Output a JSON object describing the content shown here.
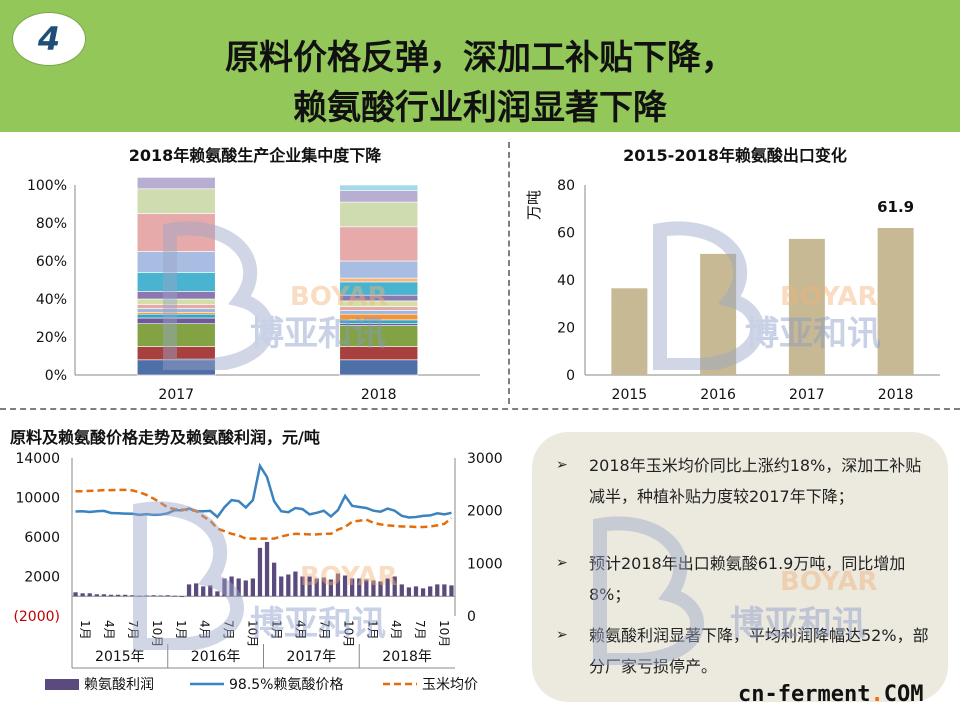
{
  "header": {
    "badge": "4",
    "title_line1": "原料价格反弹，深加工补贴下降，",
    "title_line2": "赖氨酸行业利润显著下降"
  },
  "colors": {
    "header_bg": "#93c75a",
    "export_bar": "#c6b994",
    "profit_bar": "#5b4a7d",
    "price_line": "#3a83c1",
    "corn_line": "#e46c0a",
    "accent": "#ff6a00"
  },
  "watermark": {
    "brand_en": "BOYAR",
    "brand_cn": "博亚和讯"
  },
  "site_logo": {
    "main": "cn-ferment",
    "dot": ".",
    "tld": "COM"
  },
  "notes": [
    {
      "icon": "arrow-bullet-icon",
      "text": "2018年玉米均价同比上涨约18%，深加工补贴减半，种植补贴力度较2017年下降；"
    },
    {
      "icon": "arrow-bullet-icon",
      "text": "预计2018年出口赖氨酸61.9万吨，同比增加8%；"
    },
    {
      "icon": "arrow-bullet-icon",
      "text": "赖氨酸利润显著下降，平均利润降幅达52%，部分厂家亏损停产。"
    }
  ],
  "chart_data": [
    {
      "id": "concentration",
      "type": "bar",
      "stacked": true,
      "title": "2018年赖氨酸生产企业集中度下降",
      "categories": [
        "2017",
        "2018"
      ],
      "yticks": [
        "0%",
        "20%",
        "40%",
        "60%",
        "80%",
        "100%"
      ],
      "ylim": [
        0,
        100
      ],
      "series": [
        {
          "color": "#4f6fa8",
          "values": [
            8,
            8
          ]
        },
        {
          "color": "#a84040",
          "values": [
            7,
            7
          ]
        },
        {
          "color": "#82a244",
          "values": [
            12,
            11
          ]
        },
        {
          "color": "#6d5a96",
          "values": [
            3,
            1
          ]
        },
        {
          "color": "#3aa3c1",
          "values": [
            2,
            2
          ]
        },
        {
          "color": "#f0953a",
          "values": [
            1,
            3
          ]
        },
        {
          "color": "#9db7de",
          "values": [
            2,
            2
          ]
        },
        {
          "color": "#e7a8a8",
          "values": [
            2,
            2
          ]
        },
        {
          "color": "#d2e0a8",
          "values": [
            3,
            3
          ]
        },
        {
          "color": "#8b78b0",
          "values": [
            4,
            3
          ]
        },
        {
          "color": "#49b4cf",
          "values": [
            10,
            7
          ]
        },
        {
          "color": "#f5b67e",
          "values": [
            0,
            2
          ]
        },
        {
          "color": "#a8bde2",
          "values": [
            11,
            9
          ]
        },
        {
          "color": "#e7aaaa",
          "values": [
            20,
            18
          ]
        },
        {
          "color": "#cfdcb0",
          "values": [
            13,
            13
          ]
        },
        {
          "color": "#b8aed1",
          "values": [
            6,
            6
          ]
        },
        {
          "color": "#a6d9e8",
          "values": [
            0,
            3
          ]
        }
      ]
    },
    {
      "id": "export",
      "type": "bar",
      "title": "2015-2018年赖氨酸出口变化",
      "ylabel": "万吨",
      "categories": [
        "2015",
        "2016",
        "2017",
        "2018"
      ],
      "values": [
        36.5,
        51,
        57.3,
        61.9
      ],
      "data_labels": [
        "",
        "",
        "",
        "61.9"
      ],
      "yticks": [
        "0",
        "20",
        "40",
        "60",
        "80"
      ],
      "ylim": [
        0,
        80
      ]
    },
    {
      "id": "trend",
      "type": "line",
      "title": "原料及赖氨酸价格走势及赖氨酸利润，元/吨",
      "months": [
        "1月",
        "4月",
        "7月",
        "10月",
        "1月",
        "4月",
        "7月",
        "10月",
        "1月",
        "4月",
        "7月",
        "10月",
        "1月",
        "4月",
        "7月",
        "10月"
      ],
      "years": [
        "2015年",
        "2016年",
        "2017年",
        "2018年"
      ],
      "y_left_ticks": [
        "14000",
        "10000",
        "6000",
        "2000",
        "(2000)"
      ],
      "y_left_range": [
        -2000,
        14000
      ],
      "y_right_ticks": [
        "3000",
        "2000",
        "1000",
        "0"
      ],
      "y_right_range": [
        0,
        3000
      ],
      "legend": [
        "赖氨酸利润",
        "98.5%赖氨酸价格",
        "玉米均价"
      ],
      "profit": [
        400,
        300,
        300,
        200,
        200,
        150,
        150,
        150,
        100,
        50,
        80,
        100,
        80,
        100,
        50,
        0,
        1200,
        1300,
        1000,
        1100,
        500,
        1800,
        2000,
        1800,
        1600,
        1800,
        4900,
        5500,
        3400,
        2000,
        2200,
        2500,
        2000,
        2000,
        1800,
        1900,
        1700,
        2300,
        2100,
        1800,
        1800,
        1700,
        1600,
        1500,
        1800,
        2000,
        1200,
        900,
        1000,
        800,
        1000,
        1200,
        1200,
        1100
      ],
      "price": [
        1985,
        1990,
        1975,
        1990,
        1995,
        1955,
        1950,
        1945,
        1940,
        1920,
        1935,
        1920,
        1925,
        1950,
        2010,
        2005,
        2040,
        1990,
        1990,
        1995,
        1880,
        2065,
        2200,
        2180,
        2060,
        2200,
        2850,
        2640,
        2180,
        1990,
        1970,
        2050,
        2030,
        1930,
        1960,
        2000,
        1890,
        2010,
        2280,
        2090,
        2070,
        2050,
        2000,
        1980,
        2040,
        2000,
        1900,
        1870,
        1880,
        1900,
        1910,
        1950,
        1930,
        1960
      ],
      "corn": [
        2370,
        2370,
        2375,
        2380,
        2390,
        2390,
        2395,
        2395,
        2385,
        2350,
        2300,
        2230,
        2150,
        2060,
        2030,
        2020,
        2010,
        2000,
        1890,
        1810,
        1660,
        1610,
        1560,
        1530,
        1470,
        1470,
        1470,
        1470,
        1470,
        1510,
        1540,
        1560,
        1555,
        1550,
        1550,
        1560,
        1560,
        1640,
        1690,
        1790,
        1810,
        1830,
        1770,
        1740,
        1720,
        1710,
        1700,
        1700,
        1690,
        1690,
        1700,
        1720,
        1750,
        1860
      ]
    }
  ]
}
